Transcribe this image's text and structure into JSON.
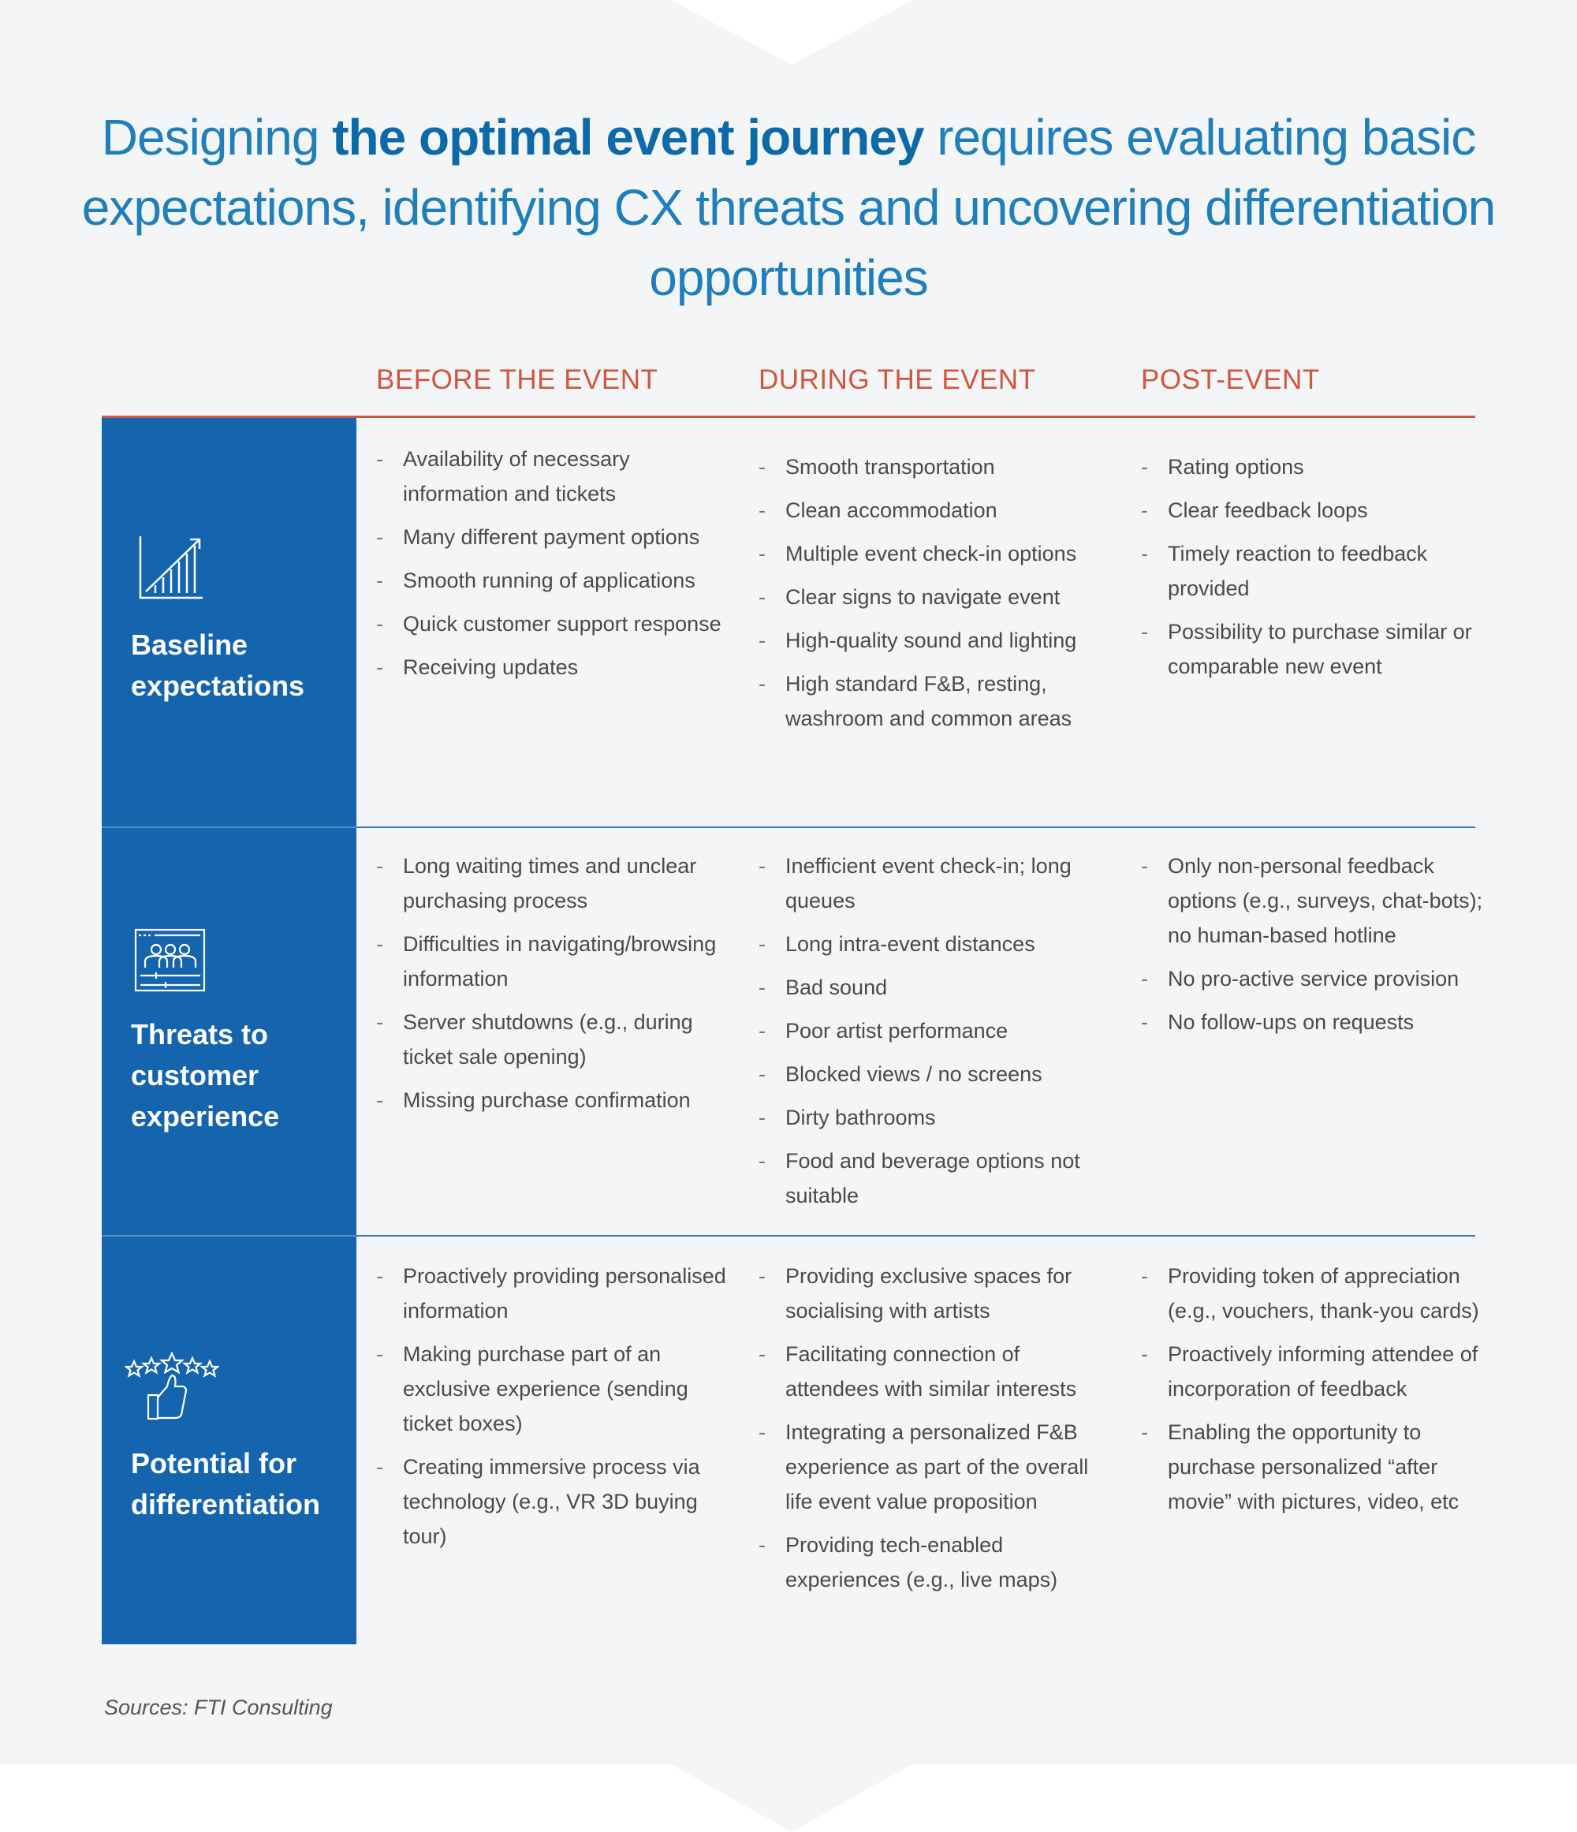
{
  "title": {
    "part1": "Designing ",
    "bold": "the optimal event journey",
    "part2": " requires evaluating basic expectations, identifying CX threats and uncovering differentiation opportunities"
  },
  "columns": [
    "BEFORE THE EVENT",
    "DURING THE EVENT",
    "POST-EVENT"
  ],
  "colors": {
    "primary_blue": "#1565ae",
    "title_blue": "#1f7fba",
    "accent_red": "#d2553f",
    "background": "#f4f5f7",
    "body_text": "#4a4a4a"
  },
  "rows": [
    {
      "label": "Baseline expectations",
      "icon": "growth-chart-icon",
      "cells": [
        [
          "Availability of necessary information and tickets",
          "Many different payment options",
          "Smooth running of applications",
          "Quick customer support response",
          "Receiving updates"
        ],
        [
          "Smooth transportation",
          "Clean accommodation",
          "Multiple event check-in options",
          "Clear signs to navigate event",
          "High-quality sound and lighting",
          "High standard F&B, resting, washroom and common areas"
        ],
        [
          "Rating options",
          "Clear feedback loops",
          "Timely reaction to feedback provided",
          "Possibility to purchase similar or comparable new event"
        ]
      ]
    },
    {
      "label": "Threats to customer experience",
      "icon": "audience-screen-icon",
      "cells": [
        [
          "Long waiting times and unclear purchasing process",
          "Difficulties in navigating/browsing information",
          "Server shutdowns (e.g., during ticket sale opening)",
          "Missing purchase confirmation"
        ],
        [
          "Inefficient event check-in; long queues",
          "Long intra-event distances",
          "Bad sound",
          "Poor artist performance",
          "Blocked views / no screens",
          "Dirty bathrooms",
          "Food and beverage options not suitable"
        ],
        [
          "Only non-personal feedback options (e.g., surveys, chat-bots); no human-based hotline",
          "No pro-active service provision",
          "No follow-ups on requests"
        ]
      ]
    },
    {
      "label": "Potential for differentiation",
      "icon": "stars-thumbs-up-icon",
      "cells": [
        [
          "Proactively providing personalised information",
          "Making purchase part of an exclusive experience (sending ticket boxes)",
          "Creating immersive process via technology (e.g., VR 3D buying tour)"
        ],
        [
          "Providing exclusive spaces for socialising with artists",
          "Facilitating connection of attendees with similar interests",
          "Integrating a personalized F&B experience as part of the overall life event value proposition",
          "Providing tech-enabled experiences (e.g., live maps)"
        ],
        [
          "Providing token of appreciation (e.g., vouchers, thank-you cards)",
          "Proactively informing attendee of incorporation of feedback",
          "Enabling the opportunity to purchase personalized “after movie” with pictures, video, etc"
        ]
      ]
    }
  ],
  "sources": "Sources: FTI Consulting"
}
